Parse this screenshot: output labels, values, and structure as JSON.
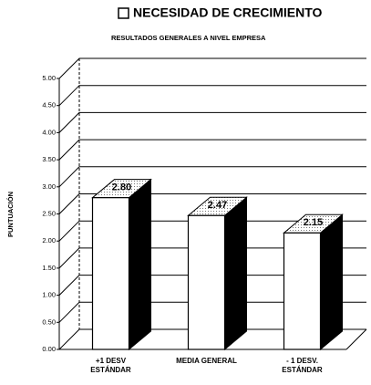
{
  "chart_data": {
    "type": "bar3d",
    "title": "NECESIDAD DE CRECIMIENTO",
    "subtitle": "RESULTADOS GENERALES A NIVEL EMPRESA",
    "y_label": "PUNTUACIÓN",
    "categories": [
      "+1 DESV ESTÁNDAR",
      "MEDIA GENERAL",
      "- 1 DESV. ESTÁNDAR"
    ],
    "values": [
      2.8,
      2.47,
      2.15
    ],
    "value_labels": [
      "2.80",
      "2.47",
      "2.15"
    ],
    "color": "#ffffff",
    "ylim": [
      0,
      5
    ],
    "yticks": [
      {
        "value": 0,
        "label": "0.00"
      },
      {
        "value": 0.5,
        "label": "0.50"
      },
      {
        "value": 1,
        "label": "1.00"
      },
      {
        "value": 1.5,
        "label": "1.50"
      },
      {
        "value": 2,
        "label": "2.00"
      },
      {
        "value": 2.5,
        "label": "2.50"
      },
      {
        "value": 3,
        "label": "3.00"
      },
      {
        "value": 3.5,
        "label": "3.50"
      },
      {
        "value": 4,
        "label": "4.00"
      },
      {
        "value": 4.5,
        "label": "4.50"
      },
      {
        "value": 5,
        "label": "5.00"
      }
    ],
    "grid": true
  }
}
